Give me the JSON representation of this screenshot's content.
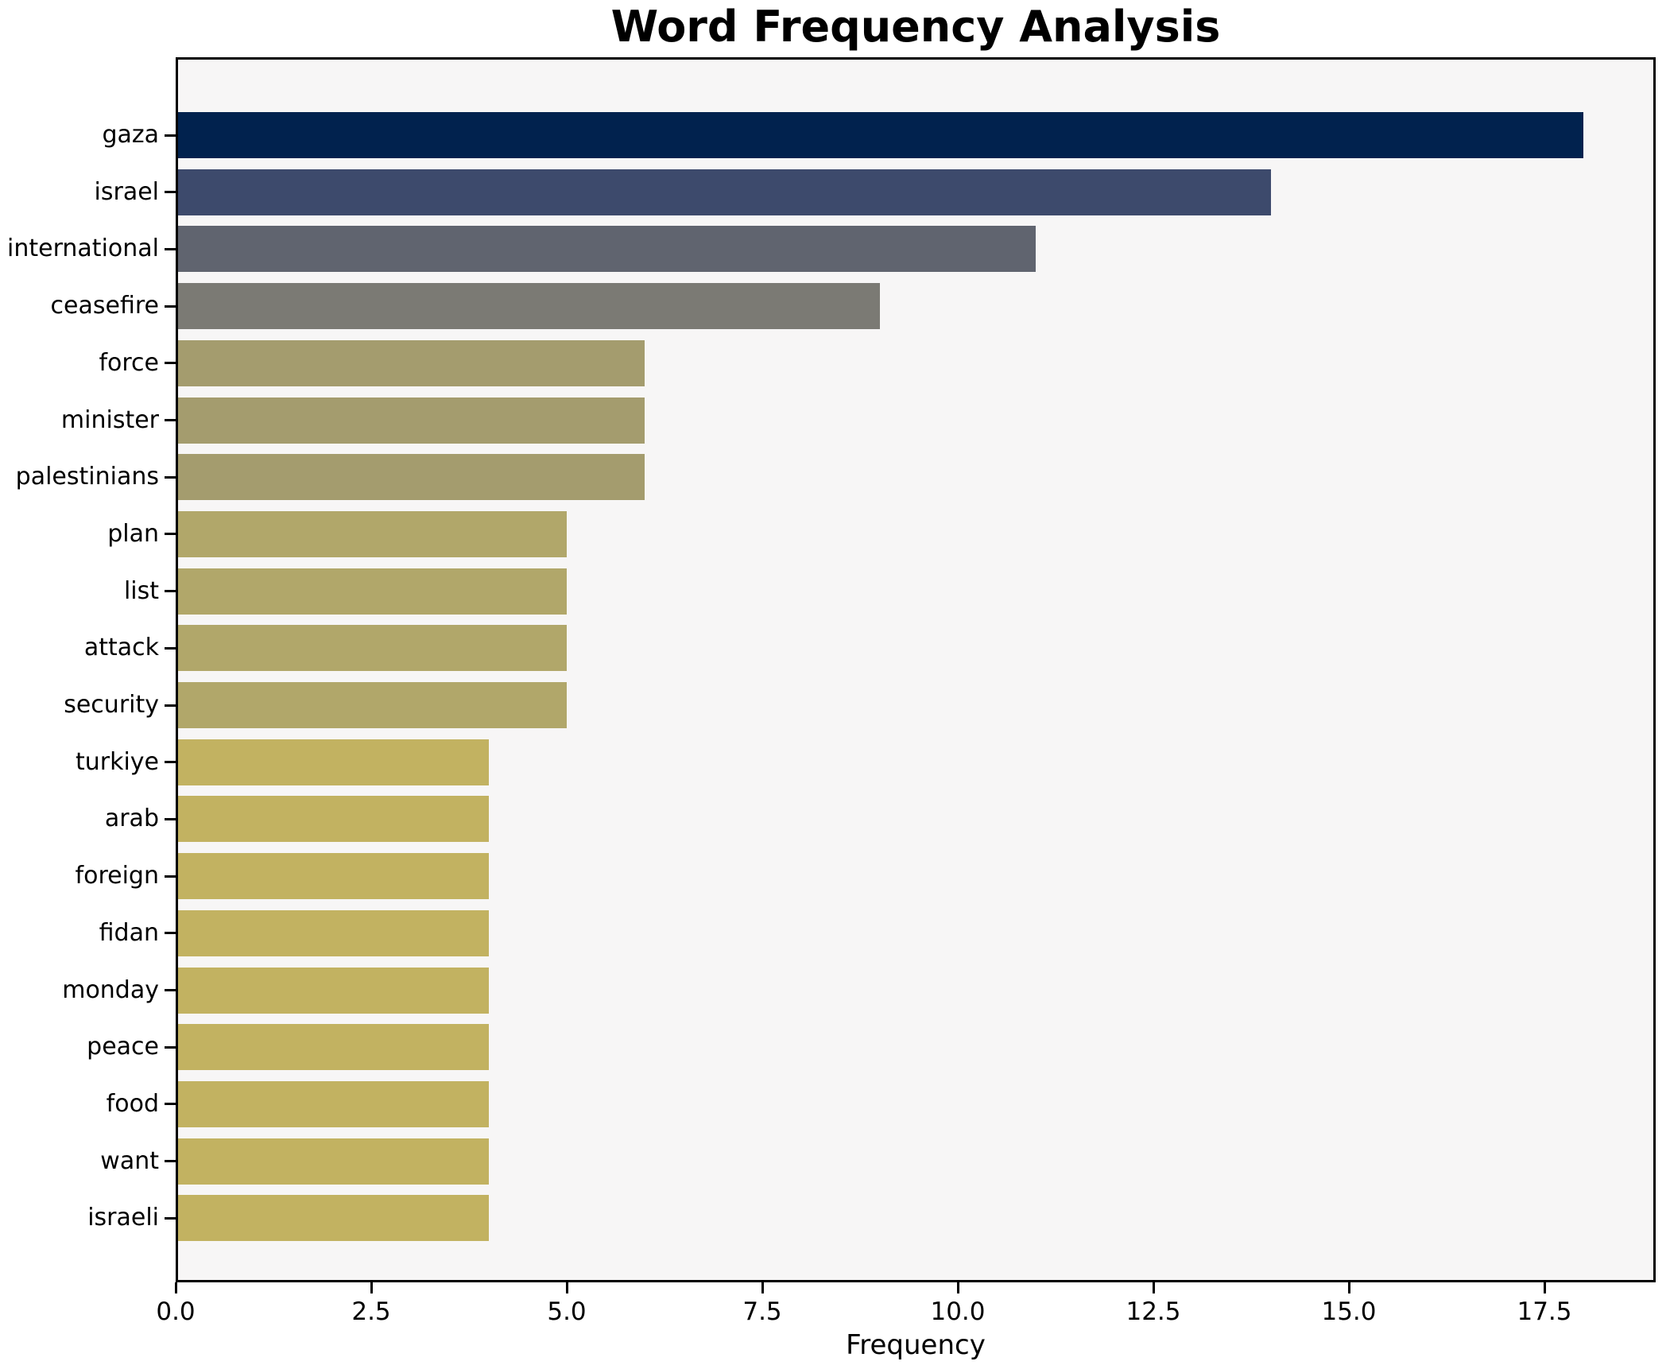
{
  "title": "Word Frequency Analysis",
  "xlabel": "Frequency",
  "chart_data": {
    "type": "bar",
    "orientation": "horizontal",
    "title": "Word Frequency Analysis",
    "xlabel": "Frequency",
    "ylabel": "",
    "categories": [
      "gaza",
      "israel",
      "international",
      "ceasefire",
      "force",
      "minister",
      "palestinians",
      "plan",
      "list",
      "attack",
      "security",
      "turkiye",
      "arab",
      "foreign",
      "fidan",
      "monday",
      "peace",
      "food",
      "want",
      "israeli"
    ],
    "values": [
      18,
      14,
      11,
      9,
      6,
      6,
      6,
      5,
      5,
      5,
      5,
      4,
      4,
      4,
      4,
      4,
      4,
      4,
      4,
      4
    ],
    "bar_colors": [
      "#01224e",
      "#3d4a6c",
      "#60646f",
      "#7b7a74",
      "#a49c6e",
      "#a49c6e",
      "#a49c6e",
      "#b1a76a",
      "#b1a76a",
      "#b1a76a",
      "#b1a76a",
      "#c2b261",
      "#c2b261",
      "#c2b261",
      "#c2b261",
      "#c2b261",
      "#c2b261",
      "#c2b261",
      "#c2b261",
      "#c2b261"
    ],
    "xlim": [
      0,
      18.93
    ],
    "xticks": [
      0.0,
      2.5,
      5.0,
      7.5,
      10.0,
      12.5,
      15.0,
      17.5
    ],
    "xtick_labels": [
      "0.0",
      "2.5",
      "5.0",
      "7.5",
      "10.0",
      "12.5",
      "15.0",
      "17.5"
    ],
    "grid": false,
    "legend": null,
    "plot_background": "#f7f6f6",
    "figure_background": "#ffffff",
    "spine_color": "#000000"
  }
}
